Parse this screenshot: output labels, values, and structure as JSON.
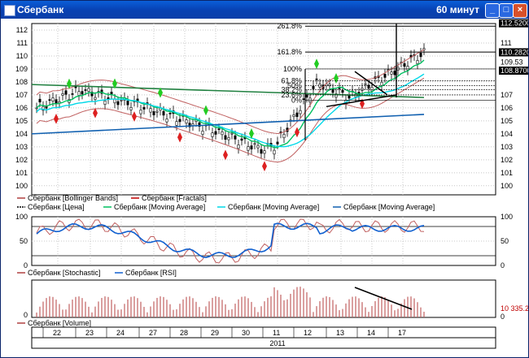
{
  "window": {
    "title": "Сбербанк",
    "timeframe": "60 минут"
  },
  "price_panel": {
    "y_ticks": [
      "112",
      "111",
      "110",
      "109",
      "108",
      "107",
      "106",
      "105",
      "104",
      "103",
      "102",
      "101",
      "100"
    ],
    "fib_labels": [
      "261.8%",
      "161.8%",
      "100%",
      "61.8%",
      "50%",
      "38.2%",
      "23.6%",
      "0%"
    ],
    "right_labels": [
      "112.5200",
      "111",
      "110.2820",
      "109.53",
      "108.8700",
      "107",
      "106",
      "105",
      "104",
      "103",
      "102",
      "101",
      "100"
    ]
  },
  "legend1": [
    {
      "text": "Сбербанк [Bollinger Bands]",
      "color": "#b04040"
    },
    {
      "text": "Сбербанк [Fractals]",
      "color": "#c00000"
    },
    {
      "text": "Сбербанк [Цена]",
      "color": "#000000"
    },
    {
      "text": "Сбербанк [Moving Average]",
      "color": "#00c060"
    },
    {
      "text": "Сбербанк [Moving Average]",
      "color": "#00d8e8"
    },
    {
      "text": "Сбербанк [Moving Average]",
      "color": "#1060b0"
    }
  ],
  "osc_panel": {
    "y_left": [
      "100",
      "50",
      "0"
    ],
    "y_right": [
      "100",
      "50",
      "0"
    ]
  },
  "legend2": [
    {
      "text": "Сбербанк [Stochastic]",
      "color": "#b04040"
    },
    {
      "text": "Сбербанк [RSI]",
      "color": "#1060d0"
    }
  ],
  "volume_panel": {
    "y_left": "0",
    "right_value": "10 335.2",
    "right_zero": "0"
  },
  "legend3": [
    {
      "text": "Сбербанк [Volume]",
      "color": "#b04040"
    }
  ],
  "x_axis": {
    "days": [
      "22",
      "23",
      "24",
      "27",
      "28",
      "29",
      "30",
      "11",
      "12",
      "13",
      "14",
      "17"
    ],
    "year": "2011"
  }
}
